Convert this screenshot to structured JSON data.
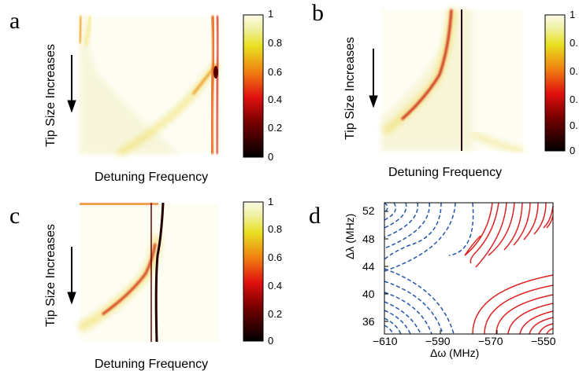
{
  "chart_data": [
    {
      "panel": "a",
      "type": "heatmap",
      "ylabel": "Tip Size Increases",
      "xlabel": "Detuning Frequency",
      "colorbar": {
        "ticks": [
          "1",
          "0.8",
          "0.6",
          "0.4",
          "0.2",
          "0"
        ],
        "range": [
          0,
          1
        ]
      },
      "colormap": "hot"
    },
    {
      "panel": "b",
      "type": "heatmap",
      "ylabel": "Tip Size Increases",
      "xlabel": "Detuning Frequency",
      "colorbar": {
        "ticks": [
          "1",
          "0.",
          "0.",
          "0.",
          "0.",
          "0"
        ],
        "range": [
          0,
          1
        ]
      },
      "colormap": "hot"
    },
    {
      "panel": "c",
      "type": "heatmap",
      "ylabel": "Tip Size Increases",
      "xlabel": "Detuning Frequency",
      "colorbar": {
        "ticks": [
          "1",
          "0.8",
          "0.6",
          "0.4",
          "0.2",
          "0"
        ],
        "range": [
          0,
          1
        ]
      },
      "colormap": "hot"
    },
    {
      "panel": "d",
      "type": "line",
      "xlabel": "Δω (MHz)",
      "ylabel": "Δλ (MHz)",
      "xlim": [
        -610,
        -550
      ],
      "ylim": [
        34,
        54
      ],
      "xticks": [
        "−610",
        "−590",
        "−570",
        "−550"
      ],
      "yticks": [
        "52",
        "48",
        "44",
        "40",
        "36"
      ],
      "series": [
        {
          "style": "dashed",
          "color": "#2255aa"
        },
        {
          "style": "solid",
          "color": "#dd2222"
        }
      ]
    }
  ],
  "labels": {
    "a": "a",
    "b": "b",
    "c": "c",
    "d": "d"
  }
}
